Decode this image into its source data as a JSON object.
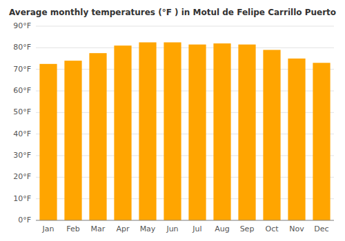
{
  "chart_data": {
    "type": "bar",
    "title": "Average monthly temperatures (°F ) in Motul de Felipe Carrillo Puerto",
    "categories": [
      "Jan",
      "Feb",
      "Mar",
      "Apr",
      "May",
      "Jun",
      "Jul",
      "Aug",
      "Sep",
      "Oct",
      "Nov",
      "Dec"
    ],
    "values": [
      72.5,
      74.0,
      77.5,
      81.0,
      82.5,
      82.5,
      81.5,
      82.0,
      81.5,
      79.0,
      75.0,
      73.0
    ],
    "color": "#FFA500",
    "ylim": [
      0,
      90
    ],
    "yticks": [
      {
        "value": 0,
        "label": "0°F"
      },
      {
        "value": 10,
        "label": "10°F"
      },
      {
        "value": 20,
        "label": "20°F"
      },
      {
        "value": 30,
        "label": "30°F"
      },
      {
        "value": 40,
        "label": "40°F"
      },
      {
        "value": 50,
        "label": "50°F"
      },
      {
        "value": 60,
        "label": "60°F"
      },
      {
        "value": 70,
        "label": "70°F"
      },
      {
        "value": 80,
        "label": "80°F"
      },
      {
        "value": 90,
        "label": "90°F"
      }
    ],
    "grid": true
  }
}
